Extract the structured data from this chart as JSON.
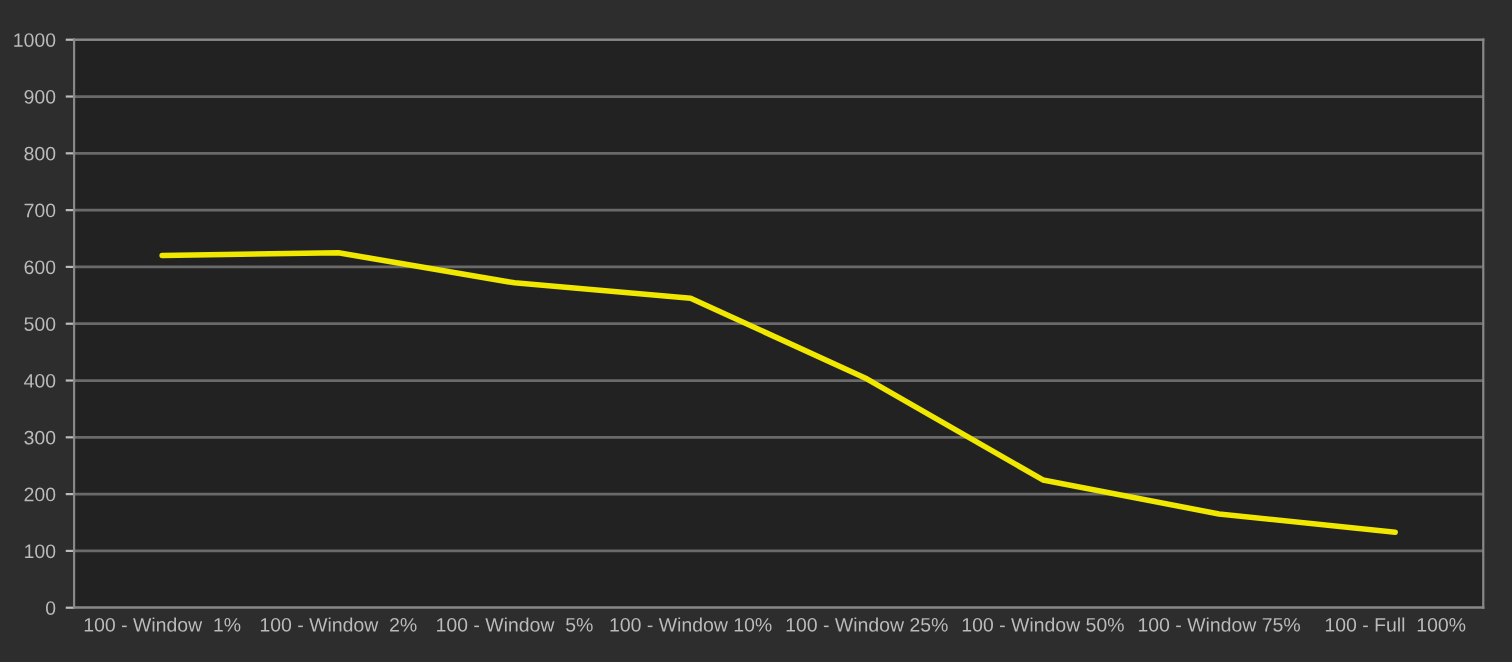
{
  "chart_data": {
    "type": "line",
    "categories": [
      "100 - Window  1%",
      "100 - Window  2%",
      "100 - Window  5%",
      "100 - Window 10%",
      "100 - Window 25%",
      "100 - Window 50%",
      "100 - Window 75%",
      "100 - Full  100%"
    ],
    "series": [
      {
        "color": "#f0e800",
        "values": [
          620,
          625,
          572,
          545,
          403,
          225,
          165,
          133
        ]
      }
    ],
    "ylim": [
      0,
      1000
    ],
    "yticks": [
      0,
      100,
      200,
      300,
      400,
      500,
      600,
      700,
      800,
      900,
      1000
    ],
    "grid": "y",
    "legend": false,
    "marker": "none",
    "line_style": "solid"
  }
}
